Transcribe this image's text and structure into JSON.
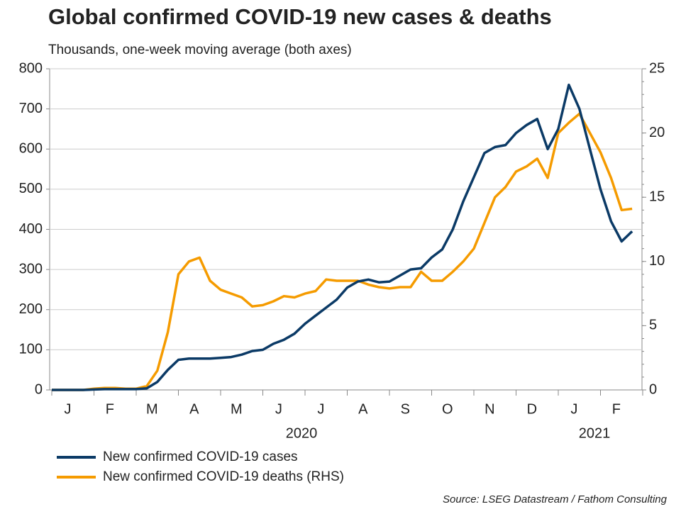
{
  "chart_data": {
    "type": "line",
    "title": "Global confirmed COVID-19 new cases & deaths",
    "subtitle": "Thousands, one-week moving average (both axes)",
    "source": "Source: LSEG Datastream / Fathom Consulting",
    "year_labels": [
      "2020",
      "2021"
    ],
    "categories": [
      null,
      null,
      "J",
      null,
      null,
      null,
      "F",
      null,
      null,
      null,
      "M",
      null,
      null,
      null,
      "A",
      null,
      null,
      null,
      "M",
      null,
      null,
      null,
      "J",
      null,
      null,
      null,
      "J",
      null,
      null,
      null,
      "A",
      null,
      null,
      null,
      "S",
      null,
      null,
      null,
      "O",
      null,
      null,
      null,
      "N",
      null,
      null,
      null,
      "D",
      null,
      null,
      null,
      "J",
      null,
      null,
      null,
      "F",
      null
    ],
    "series": [
      {
        "name": "New confirmed COVID-19 cases",
        "color": "#0b3a66",
        "values": [
          0,
          0,
          0,
          0,
          1,
          2,
          2,
          2,
          2,
          4,
          20,
          50,
          75,
          78,
          78,
          78,
          80,
          82,
          88,
          97,
          100,
          115,
          125,
          140,
          165,
          185,
          205,
          225,
          255,
          270,
          275,
          268,
          270,
          285,
          300,
          303,
          330,
          350,
          400,
          470,
          530,
          590,
          605,
          610,
          640,
          660,
          675,
          600,
          650,
          760,
          700,
          600,
          500,
          420,
          370,
          395
        ]
      },
      {
        "name": "New confirmed COVID-19 deaths (RHS)",
        "color": "#f59b00",
        "axis": "y2",
        "values": [
          0,
          0,
          0,
          0,
          0.1,
          0.15,
          0.15,
          0.1,
          0.1,
          0.3,
          1.5,
          4.5,
          9,
          10,
          10.3,
          8.5,
          7.8,
          7.5,
          7.2,
          6.5,
          6.6,
          6.9,
          7.3,
          7.2,
          7.5,
          7.7,
          8.6,
          8.5,
          8.5,
          8.5,
          8.2,
          8.0,
          7.9,
          8.0,
          8.0,
          9.2,
          8.5,
          8.5,
          9.2,
          10,
          11,
          13,
          15,
          15.8,
          17,
          17.4,
          18,
          16.5,
          20,
          20.8,
          21.5,
          20,
          18.5,
          16.5,
          14,
          14.1
        ]
      }
    ],
    "ylim": [
      0,
      800
    ],
    "yticks": [
      0,
      100,
      200,
      300,
      400,
      500,
      600,
      700,
      800
    ],
    "y2lim": [
      0,
      25
    ],
    "y2ticks": [
      0,
      5,
      10,
      15,
      20,
      25
    ],
    "grid": true
  }
}
